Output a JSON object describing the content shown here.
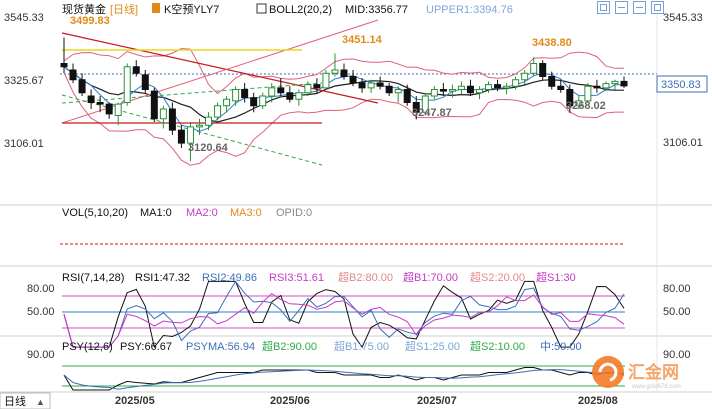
{
  "header": {
    "symbol": "现货黄金",
    "period": "[日线]",
    "main_indicator": "K空预YLY7",
    "boll": "BOLL2(20,2)",
    "mid": "MID:3356.77",
    "upper": "UPPER1:3394.76"
  },
  "main_y_ticks_left": [
    "3545.33",
    "3325.67",
    "3106.01"
  ],
  "main_y_ticks_right": [
    "3545.33",
    "3325.67",
    "3106.01"
  ],
  "current_price": "3350.83",
  "annotations": [
    "3499.83",
    "3451.14",
    "3438.80",
    "3247.87",
    "3268.02",
    "3120.64"
  ],
  "vol_panel": {
    "label": "VOL(5,10,20)",
    "ma1": "MA1:0",
    "ma2": "MA2:0",
    "ma3": "MA3:0",
    "opid": "OPID:0"
  },
  "rsi_panel": {
    "label": "RSI(7,14,28)",
    "rsi1": "RSI1:47.32",
    "rsi2": "RSI2:49.86",
    "rsi3": "RSI3:51.61",
    "b1": "超B2:80.00",
    "b2": "超B1:70.00",
    "s1": "超S2:20.00",
    "s2": "超S1:30",
    "ticks_left": [
      "80.00",
      "50.00"
    ],
    "ticks_right": [
      "80.00",
      "50.00"
    ]
  },
  "psy_panel": {
    "label": "PSY(12,6)",
    "psy": "PSY:66.67",
    "psyma": "PSYMA:56.94",
    "b2": "超B2:90.00",
    "b1": "超B1:75.00",
    "s1": "超S1:25.00",
    "s2": "超S2:10.00",
    "mid": "中:50.00",
    "ticks_left": [
      "90.00"
    ],
    "ticks_right": [
      "90.00"
    ]
  },
  "x_axis": {
    "period_button": "日线",
    "labels": [
      "2025/05",
      "2025/06",
      "2025/07",
      "2025/08"
    ]
  },
  "watermark": {
    "text": "汇金网",
    "url": "www.gold678.com"
  },
  "colors": {
    "up": "#2a8f3a",
    "down": "#111111",
    "mid": "#1e1e1e",
    "upper": "#e0607e",
    "lower": "#2f7dcc",
    "ma_blue": "#2f7dcc",
    "green_dash": "#2fa84f",
    "trend_red": "#c41c1c",
    "yellow": "#e8d81a",
    "annotation": "#e08a1a",
    "annotation_grey": "#666666"
  },
  "chart_data": {
    "type": "candlestick",
    "x_labels": [
      "2025/05",
      "2025/06",
      "2025/07",
      "2025/08"
    ],
    "ylim": [
      3000,
      3560
    ],
    "candles": [
      {
        "o": 3420,
        "h": 3500,
        "l": 3390,
        "c": 3410
      },
      {
        "o": 3400,
        "h": 3420,
        "l": 3360,
        "c": 3370
      },
      {
        "o": 3370,
        "h": 3390,
        "l": 3320,
        "c": 3330
      },
      {
        "o": 3320,
        "h": 3340,
        "l": 3280,
        "c": 3300
      },
      {
        "o": 3300,
        "h": 3320,
        "l": 3270,
        "c": 3295
      },
      {
        "o": 3295,
        "h": 3300,
        "l": 3250,
        "c": 3265
      },
      {
        "o": 3260,
        "h": 3300,
        "l": 3230,
        "c": 3295
      },
      {
        "o": 3300,
        "h": 3420,
        "l": 3290,
        "c": 3410
      },
      {
        "o": 3410,
        "h": 3430,
        "l": 3380,
        "c": 3390
      },
      {
        "o": 3385,
        "h": 3400,
        "l": 3330,
        "c": 3340
      },
      {
        "o": 3335,
        "h": 3345,
        "l": 3240,
        "c": 3250
      },
      {
        "o": 3250,
        "h": 3290,
        "l": 3220,
        "c": 3280
      },
      {
        "o": 3280,
        "h": 3300,
        "l": 3200,
        "c": 3215
      },
      {
        "o": 3215,
        "h": 3230,
        "l": 3160,
        "c": 3175
      },
      {
        "o": 3175,
        "h": 3240,
        "l": 3120,
        "c": 3225
      },
      {
        "o": 3225,
        "h": 3250,
        "l": 3200,
        "c": 3230
      },
      {
        "o": 3230,
        "h": 3270,
        "l": 3215,
        "c": 3255
      },
      {
        "o": 3255,
        "h": 3300,
        "l": 3245,
        "c": 3290
      },
      {
        "o": 3290,
        "h": 3320,
        "l": 3270,
        "c": 3310
      },
      {
        "o": 3305,
        "h": 3350,
        "l": 3290,
        "c": 3340
      },
      {
        "o": 3340,
        "h": 3360,
        "l": 3300,
        "c": 3315
      },
      {
        "o": 3315,
        "h": 3330,
        "l": 3270,
        "c": 3290
      },
      {
        "o": 3290,
        "h": 3330,
        "l": 3280,
        "c": 3320
      },
      {
        "o": 3320,
        "h": 3360,
        "l": 3300,
        "c": 3345
      },
      {
        "o": 3345,
        "h": 3375,
        "l": 3320,
        "c": 3330
      },
      {
        "o": 3330,
        "h": 3350,
        "l": 3300,
        "c": 3310
      },
      {
        "o": 3310,
        "h": 3340,
        "l": 3290,
        "c": 3330
      },
      {
        "o": 3330,
        "h": 3365,
        "l": 3320,
        "c": 3355
      },
      {
        "o": 3355,
        "h": 3375,
        "l": 3330,
        "c": 3345
      },
      {
        "o": 3345,
        "h": 3400,
        "l": 3340,
        "c": 3390
      },
      {
        "o": 3390,
        "h": 3451,
        "l": 3380,
        "c": 3400
      },
      {
        "o": 3400,
        "h": 3420,
        "l": 3370,
        "c": 3380
      },
      {
        "o": 3380,
        "h": 3400,
        "l": 3350,
        "c": 3360
      },
      {
        "o": 3360,
        "h": 3375,
        "l": 3330,
        "c": 3345
      },
      {
        "o": 3345,
        "h": 3370,
        "l": 3330,
        "c": 3360
      },
      {
        "o": 3360,
        "h": 3380,
        "l": 3340,
        "c": 3350
      },
      {
        "o": 3350,
        "h": 3360,
        "l": 3320,
        "c": 3330
      },
      {
        "o": 3330,
        "h": 3350,
        "l": 3300,
        "c": 3340
      },
      {
        "o": 3340,
        "h": 3355,
        "l": 3290,
        "c": 3300
      },
      {
        "o": 3300,
        "h": 3320,
        "l": 3248,
        "c": 3270
      },
      {
        "o": 3270,
        "h": 3330,
        "l": 3260,
        "c": 3320
      },
      {
        "o": 3320,
        "h": 3350,
        "l": 3310,
        "c": 3340
      },
      {
        "o": 3340,
        "h": 3360,
        "l": 3320,
        "c": 3335
      },
      {
        "o": 3335,
        "h": 3355,
        "l": 3315,
        "c": 3340
      },
      {
        "o": 3340,
        "h": 3365,
        "l": 3325,
        "c": 3350
      },
      {
        "o": 3350,
        "h": 3370,
        "l": 3320,
        "c": 3330
      },
      {
        "o": 3330,
        "h": 3350,
        "l": 3310,
        "c": 3340
      },
      {
        "o": 3340,
        "h": 3365,
        "l": 3330,
        "c": 3355
      },
      {
        "o": 3355,
        "h": 3370,
        "l": 3335,
        "c": 3345
      },
      {
        "o": 3345,
        "h": 3360,
        "l": 3325,
        "c": 3350
      },
      {
        "o": 3350,
        "h": 3380,
        "l": 3340,
        "c": 3370
      },
      {
        "o": 3370,
        "h": 3400,
        "l": 3355,
        "c": 3390
      },
      {
        "o": 3390,
        "h": 3439,
        "l": 3380,
        "c": 3420
      },
      {
        "o": 3420,
        "h": 3430,
        "l": 3370,
        "c": 3380
      },
      {
        "o": 3380,
        "h": 3395,
        "l": 3340,
        "c": 3350
      },
      {
        "o": 3350,
        "h": 3370,
        "l": 3330,
        "c": 3340
      },
      {
        "o": 3340,
        "h": 3355,
        "l": 3268,
        "c": 3290
      },
      {
        "o": 3290,
        "h": 3320,
        "l": 3280,
        "c": 3305
      },
      {
        "o": 3305,
        "h": 3360,
        "l": 3300,
        "c": 3350
      },
      {
        "o": 3350,
        "h": 3370,
        "l": 3330,
        "c": 3345
      },
      {
        "o": 3345,
        "h": 3365,
        "l": 3335,
        "c": 3358
      },
      {
        "o": 3358,
        "h": 3370,
        "l": 3340,
        "c": 3365
      },
      {
        "o": 3365,
        "h": 3380,
        "l": 3345,
        "c": 3351
      }
    ]
  }
}
